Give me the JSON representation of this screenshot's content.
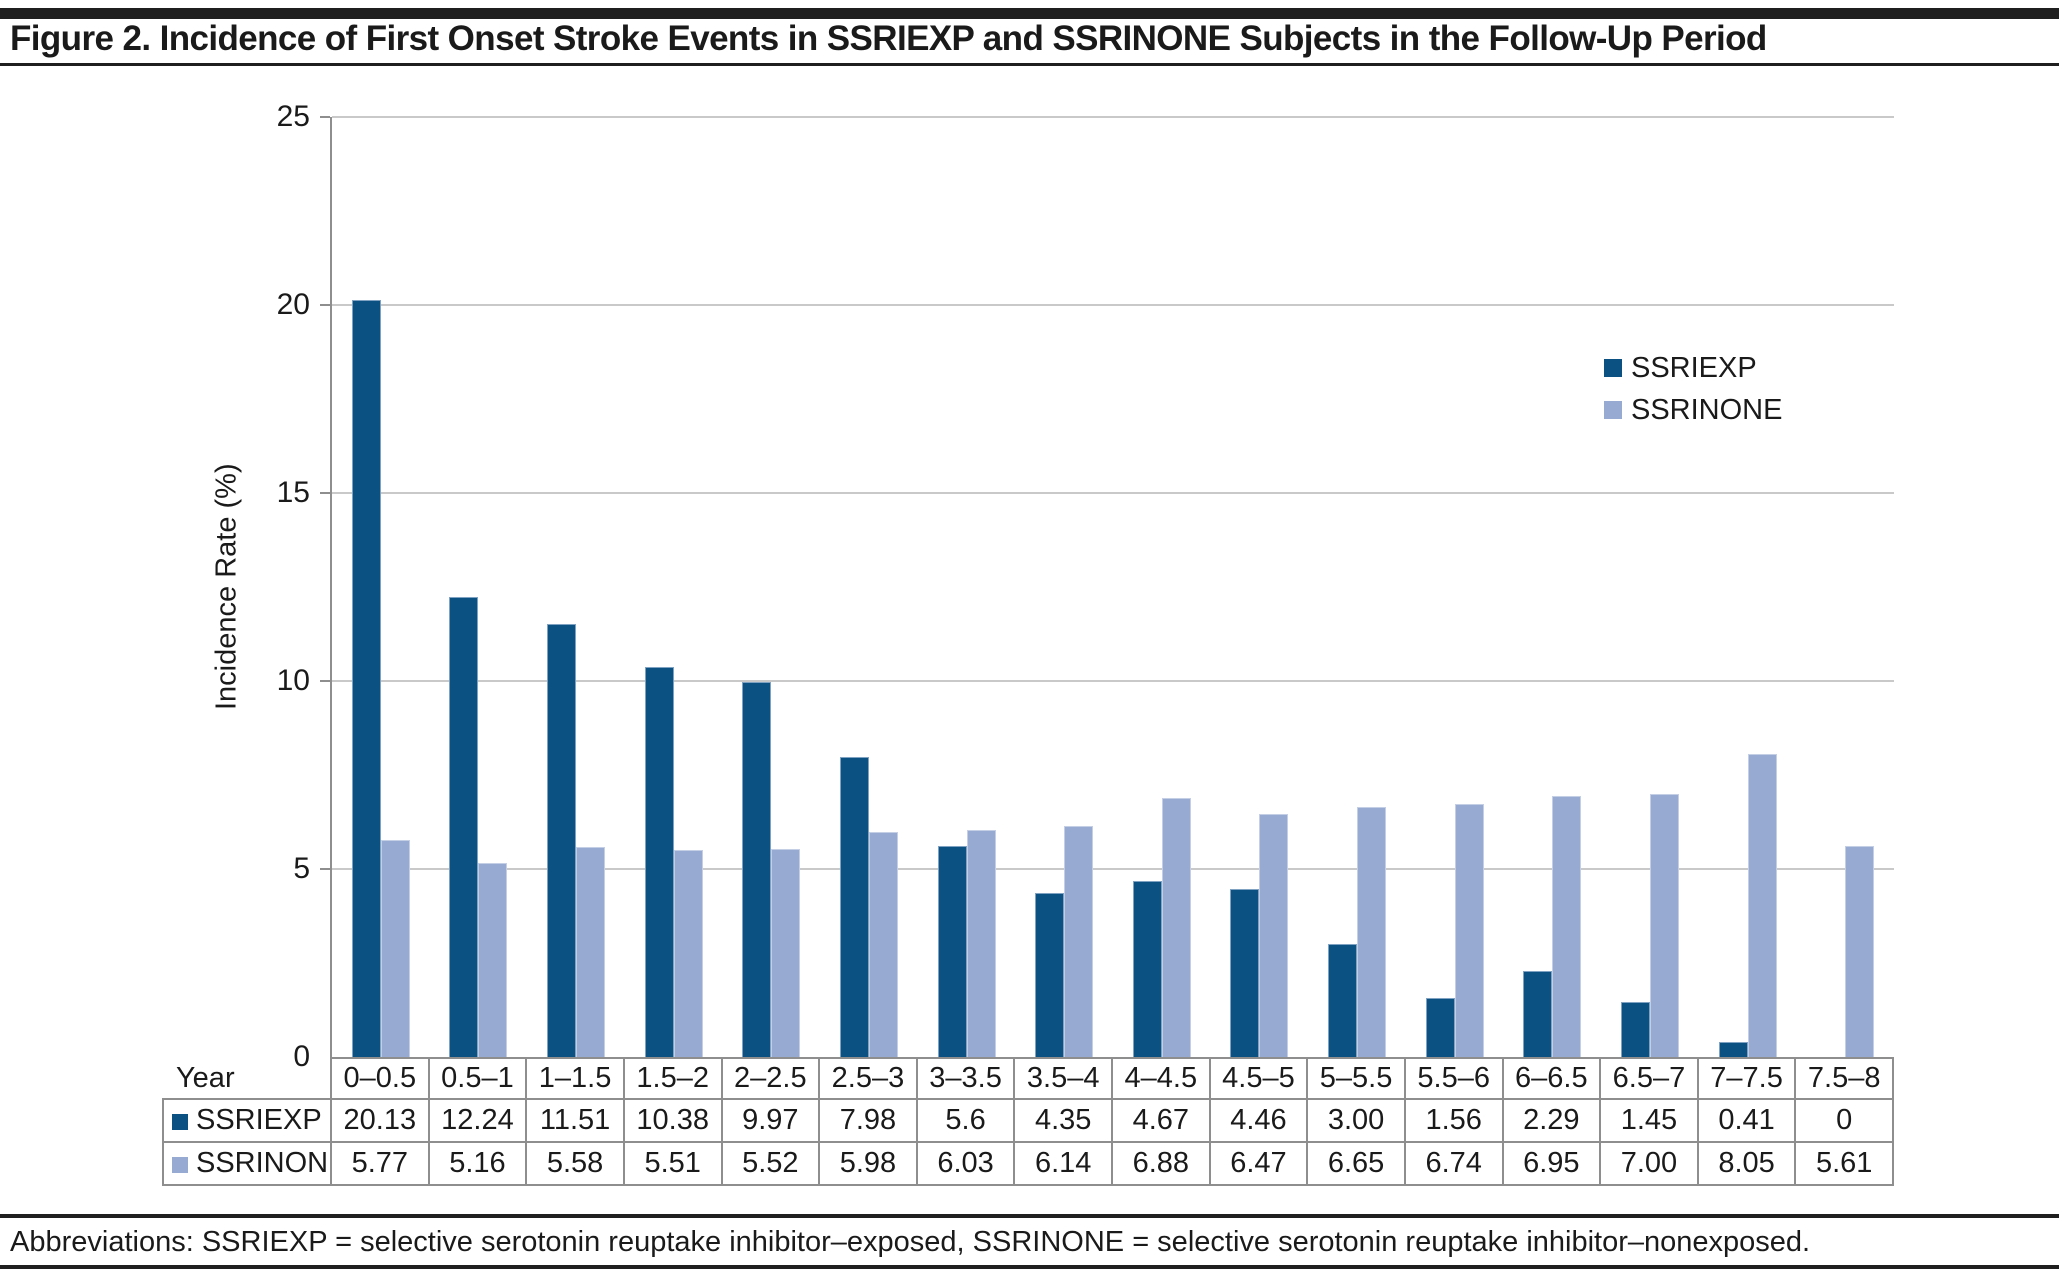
{
  "header": {
    "title": "Figure 2. Incidence of First Onset Stroke Events in SSRIEXP and SSRINONE Subjects in the Follow-Up Period"
  },
  "footer": {
    "abbreviations": "Abbreviations: SSRIEXP = selective serotonin reuptake inhibitor–exposed, SSRINONE = selective serotonin reuptake inhibitor–nonexposed."
  },
  "chart_data": {
    "type": "bar",
    "title": "Figure 2. Incidence of First Onset Stroke Events in SSRIEXP and SSRINONE Subjects in the Follow-Up Period",
    "xlabel": "Year",
    "ylabel": "Incidence Rate (%)",
    "ylim": [
      0,
      25
    ],
    "yticks": [
      0,
      5,
      10,
      15,
      20,
      25
    ],
    "grid": true,
    "legend_position": "inside top-right",
    "categories": [
      "0–0.5",
      "0.5–1",
      "1–1.5",
      "1.5–2",
      "2–2.5",
      "2.5–3",
      "3–3.5",
      "3.5–4",
      "4–4.5",
      "4.5–5",
      "5–5.5",
      "5.5–6",
      "6–6.5",
      "6.5–7",
      "7–7.5",
      "7.5–8"
    ],
    "series": [
      {
        "name": "SSRIEXP",
        "color": "#0B5282",
        "border_color": "#7FA1C2",
        "values": [
          20.13,
          12.24,
          11.51,
          10.38,
          9.97,
          7.98,
          5.6,
          4.35,
          4.67,
          4.46,
          3.0,
          1.56,
          2.29,
          1.45,
          0.41,
          0
        ],
        "values_display": [
          "20.13",
          "12.24",
          "11.51",
          "10.38",
          "9.97",
          "7.98",
          "5.6",
          "4.35",
          "4.67",
          "4.46",
          "3.00",
          "1.56",
          "2.29",
          "1.45",
          "0.41",
          "0"
        ]
      },
      {
        "name": "SSRINONE",
        "color": "#97ABD2",
        "border_color": "#C4CFE6",
        "values": [
          5.77,
          5.16,
          5.58,
          5.51,
          5.52,
          5.98,
          6.03,
          6.14,
          6.88,
          6.47,
          6.65,
          6.74,
          6.95,
          7.0,
          8.05,
          5.61
        ],
        "values_display": [
          "5.77",
          "5.16",
          "5.58",
          "5.51",
          "5.52",
          "5.98",
          "6.03",
          "6.14",
          "6.88",
          "6.47",
          "6.65",
          "6.74",
          "6.95",
          "7.00",
          "8.05",
          "5.61"
        ]
      }
    ],
    "colors": {
      "grid": "#C9C9C9",
      "axis": "#8E8E8E",
      "rule": "#1F1F1F",
      "text": "#1A1A1A"
    }
  }
}
